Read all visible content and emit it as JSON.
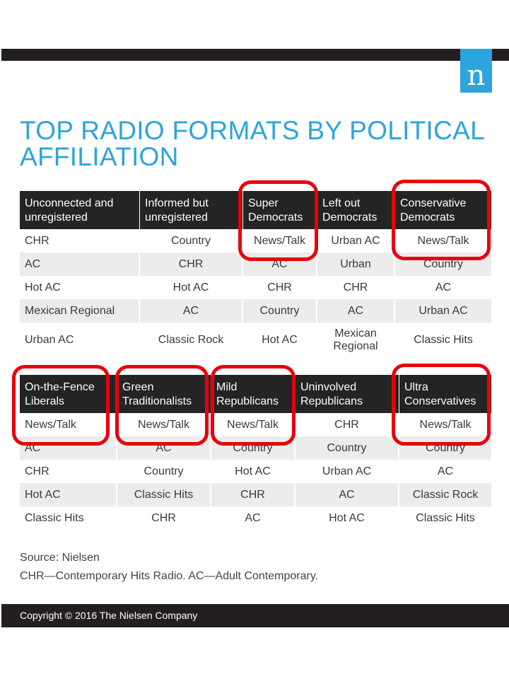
{
  "title": "TOP RADIO FORMATS BY POLITICAL AFFILIATION",
  "logo_letter": "n",
  "colors": {
    "accent": "#2da4dc",
    "header_bg": "#242424",
    "stripe": "#ececec",
    "highlight": "#e8000b",
    "bar": "#231f20"
  },
  "chart_data": [
    {
      "type": "table",
      "columns": [
        "Unconnected and\nunregistered",
        "Informed but\nunregistered",
        "Super\nDemocrats",
        "Left out\nDemocrats",
        "Conservative\nDemocrats"
      ],
      "rows": [
        [
          "CHR",
          "Country",
          "News/Talk",
          "Urban AC",
          "News/Talk"
        ],
        [
          "AC",
          "CHR",
          "AC",
          "Urban",
          "Country"
        ],
        [
          "Hot AC",
          "Hot AC",
          "CHR",
          "CHR",
          "AC"
        ],
        [
          "Mexican Regional",
          "AC",
          "Country",
          "AC",
          "Urban AC"
        ],
        [
          "Urban AC",
          "Classic Rock",
          "Hot AC",
          "Mexican\nRegional",
          "Classic Hits"
        ]
      ],
      "highlighted_columns": [
        "Super\nDemocrats",
        "Conservative\nDemocrats"
      ]
    },
    {
      "type": "table",
      "columns": [
        "On-the-Fence\nLiberals",
        "Green\nTraditionalists",
        "Mild\nRepublicans",
        "Uninvolved\nRepublicans",
        "Ultra\nConservatives"
      ],
      "rows": [
        [
          "News/Talk",
          "News/Talk",
          "News/Talk",
          "CHR",
          "News/Talk"
        ],
        [
          "AC",
          "AC",
          "Country",
          "Country",
          "Country"
        ],
        [
          "CHR",
          "Country",
          "Hot AC",
          "Urban AC",
          "AC"
        ],
        [
          "Hot AC",
          "Classic Hits",
          "CHR",
          "AC",
          "Classic Rock"
        ],
        [
          "Classic Hits",
          "CHR",
          "AC",
          "Hot AC",
          "Classic Hits"
        ]
      ],
      "highlighted_columns": [
        "On-the-Fence\nLiberals",
        "Green\nTraditionalists",
        "Mild\nRepublicans",
        "Ultra\nConservatives"
      ]
    }
  ],
  "source": "Source: Nielsen",
  "note": "CHR—Contemporary Hits Radio. AC—Adult Contemporary.",
  "copyright": "Copyright © 2016 The Nielsen Company"
}
